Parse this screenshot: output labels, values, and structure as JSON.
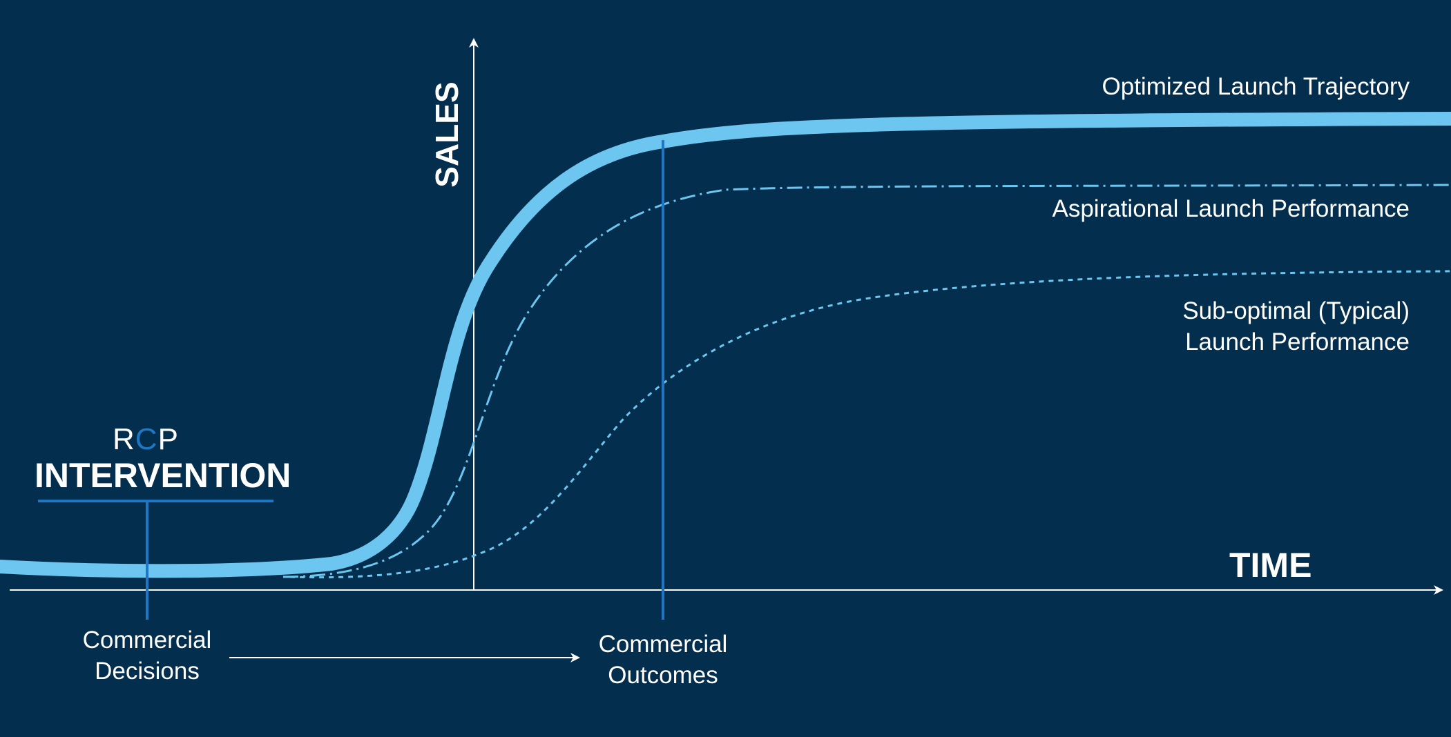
{
  "diagram": {
    "x_axis_label": "TIME",
    "y_axis_label": "SALES",
    "curves": [
      {
        "name": "Optimized Launch Trajectory",
        "label_lines": [
          "Optimized Launch Trajectory"
        ],
        "style": "solid-thick",
        "color": "#6cc6f0"
      },
      {
        "name": "Aspirational Launch Performance",
        "label_lines": [
          "Aspirational Launch Performance"
        ],
        "style": "dash-dot",
        "color": "#6cc6f0"
      },
      {
        "name": "Sub-optimal (Typical) Launch Performance",
        "label_lines": [
          "Sub-optimal (Typical)",
          "Launch Performance"
        ],
        "style": "dotted",
        "color": "#6cc6f0"
      }
    ],
    "intervention": {
      "brand_r": "R",
      "brand_c": "C",
      "brand_p": "P",
      "title": "INTERVENTION"
    },
    "markers": {
      "decisions_lines": [
        "Commercial",
        "Decisions"
      ],
      "outcomes_lines": [
        "Commercial",
        "Outcomes"
      ]
    },
    "colors": {
      "background": "#042e4d",
      "curve": "#6cc6f0",
      "marker": "#1f76c2",
      "axis": "#ffffff",
      "brand_c": "#1f76c2"
    }
  }
}
